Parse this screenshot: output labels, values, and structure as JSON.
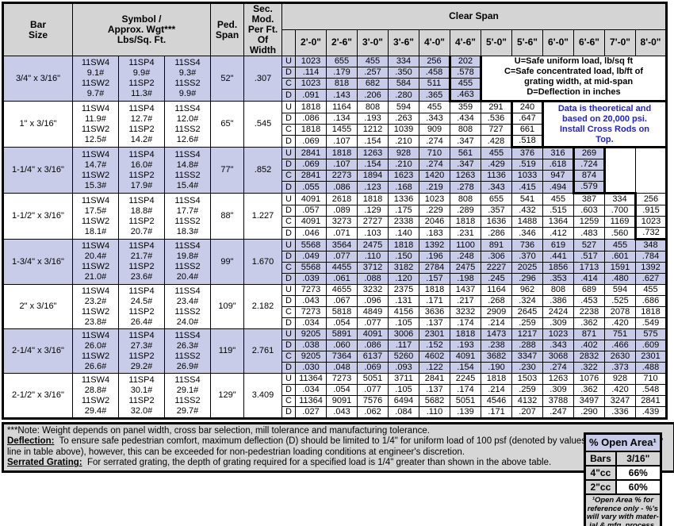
{
  "header": {
    "bar_size": "Bar\nSize",
    "symbol": "Symbol /\nApprox. Wgt***\nLbs/Sq. Ft.",
    "ped_span": "Ped.\nSpan",
    "sec_mod": "Sec. Mod.\nPer Ft.\nOf Width",
    "clear_span": "Clear Span",
    "spans": [
      "2'-0\"",
      "2'-6\"",
      "3'-0\"",
      "3'-6\"",
      "4'-0\"",
      "4'-6\"",
      "5'-0\"",
      "5'-6\"",
      "6'-0\"",
      "6'-6\"",
      "7'-0\"",
      "8'-0\""
    ]
  },
  "sub_labels": [
    "U",
    "D",
    "C",
    "D"
  ],
  "legend_lines": [
    "U=Safe uniform load, lb/sq ft",
    "C=Safe concentrated load, lb/ft of",
    "    grating width, at mid-span",
    "D=Deflection in inches"
  ],
  "info_lines": [
    "Data is theoretical and",
    "based on 20,000 psi.",
    "Install Cross Rods on",
    "Top."
  ],
  "rows": [
    {
      "bar_size": "3/4\" x 3/16\"",
      "symbols": [
        [
          "11SW4",
          "9.1#"
        ],
        [
          "11SP4",
          "9.9#"
        ],
        [
          "11SS4",
          "9.3#"
        ],
        [
          "11SW2",
          "9.7#"
        ],
        [
          "11SP2",
          "11.3#"
        ],
        [
          "11SS2",
          "9.9#"
        ]
      ],
      "ped_span": "52\"",
      "sec_mod": ".307",
      "heavy_col": 6,
      "U": [
        "1023",
        "655",
        "455",
        "334",
        "256",
        "202"
      ],
      "D1": [
        ".114",
        ".179",
        ".257",
        ".350",
        ".458",
        ".578"
      ],
      "C": [
        "1023",
        "818",
        "682",
        "584",
        "511",
        "455"
      ],
      "D2": [
        ".091",
        ".143",
        ".206",
        ".280",
        ".365",
        ".463"
      ]
    },
    {
      "bar_size": "1\" x 3/16\"",
      "symbols": [
        [
          "11SW4",
          "11.9#"
        ],
        [
          "11SP4",
          "12.7#"
        ],
        [
          "11SS4",
          "12.0#"
        ],
        [
          "11SW2",
          "12.5#"
        ],
        [
          "11SP2",
          "14.2#"
        ],
        [
          "11SS2",
          "12.6#"
        ]
      ],
      "ped_span": "65\"",
      "sec_mod": ".545",
      "heavy_col": 8,
      "U": [
        "1818",
        "1164",
        "808",
        "594",
        "455",
        "359",
        "291",
        "240"
      ],
      "D1": [
        ".086",
        ".134",
        ".193",
        ".263",
        ".343",
        ".434",
        ".536",
        ".647"
      ],
      "C": [
        "1818",
        "1455",
        "1212",
        "1039",
        "909",
        "808",
        "727",
        "661"
      ],
      "D2": [
        ".069",
        ".107",
        ".154",
        ".210",
        ".274",
        ".347",
        ".428",
        ".518"
      ]
    },
    {
      "bar_size": "1-1/4\" x 3/16\"",
      "symbols": [
        [
          "11SW4",
          "14.7#"
        ],
        [
          "11SP4",
          "16.0#"
        ],
        [
          "11SS4",
          "14.8#"
        ],
        [
          "11SW2",
          "15.3#"
        ],
        [
          "11SP2",
          "17.9#"
        ],
        [
          "11SS2",
          "15.4#"
        ]
      ],
      "ped_span": "77\"",
      "sec_mod": ".852",
      "heavy_col": 10,
      "U": [
        "2841",
        "1818",
        "1263",
        "928",
        "710",
        "561",
        "455",
        "376",
        "316",
        "269"
      ],
      "D1": [
        ".069",
        ".107",
        ".154",
        ".210",
        ".274",
        ".347",
        ".429",
        ".519",
        ".618",
        ".724"
      ],
      "C": [
        "2841",
        "2273",
        "1894",
        "1623",
        "1420",
        "1263",
        "1136",
        "1033",
        "947",
        "874"
      ],
      "D2": [
        ".055",
        ".086",
        ".123",
        ".168",
        ".219",
        ".278",
        ".343",
        ".415",
        ".494",
        ".579"
      ]
    },
    {
      "bar_size": "1-1/2\" x 3/16\"",
      "symbols": [
        [
          "11SW4",
          "17.5#"
        ],
        [
          "11SP4",
          "18.8#"
        ],
        [
          "11SS4",
          "17.7#"
        ],
        [
          "11SW2",
          "18.1#"
        ],
        [
          "11SP2",
          "20.7#"
        ],
        [
          "11SS2",
          "18.3#"
        ]
      ],
      "ped_span": "88\"",
      "sec_mod": "1.227",
      "heavy_col": 12,
      "U": [
        "4091",
        "2618",
        "1818",
        "1336",
        "1023",
        "808",
        "655",
        "541",
        "455",
        "387",
        "334",
        "256"
      ],
      "D1": [
        ".057",
        ".089",
        ".129",
        ".175",
        ".229",
        ".289",
        ".357",
        ".432",
        ".515",
        ".603",
        ".700",
        ".915"
      ],
      "C": [
        "4091",
        "3273",
        "2727",
        "2338",
        "2046",
        "1818",
        "1636",
        "1488",
        "1364",
        "1259",
        "1169",
        "1023"
      ],
      "D2": [
        ".046",
        ".071",
        ".103",
        ".140",
        ".183",
        ".231",
        ".286",
        ".346",
        ".412",
        ".483",
        ".560",
        ".732"
      ]
    },
    {
      "bar_size": "1-3/4\" x 3/16\"",
      "symbols": [
        [
          "11SW4",
          "20.4#"
        ],
        [
          "11SP4",
          "21.7#"
        ],
        [
          "11SS4",
          "19.8#"
        ],
        [
          "11SW2",
          "21.0#"
        ],
        [
          "11SP2",
          "23.6#"
        ],
        [
          "11SS2",
          "20.4#"
        ]
      ],
      "ped_span": "99\"",
      "sec_mod": "1.670",
      "heavy_col": 0,
      "U": [
        "5568",
        "3564",
        "2475",
        "1818",
        "1392",
        "1100",
        "891",
        "736",
        "619",
        "527",
        "455",
        "348"
      ],
      "D1": [
        ".049",
        ".077",
        ".110",
        ".150",
        ".196",
        ".248",
        ".306",
        ".370",
        ".441",
        ".517",
        ".601",
        ".784"
      ],
      "C": [
        "5568",
        "4455",
        "3712",
        "3182",
        "2784",
        "2475",
        "2227",
        "2025",
        "1856",
        "1713",
        "1591",
        "1392"
      ],
      "D2": [
        ".039",
        ".061",
        ".088",
        ".120",
        ".157",
        ".198",
        ".245",
        ".296",
        ".353",
        ".414",
        ".480",
        ".627"
      ]
    },
    {
      "bar_size": "2\" x 3/16\"",
      "symbols": [
        [
          "11SW4",
          "23.2#"
        ],
        [
          "11SP4",
          "24.5#"
        ],
        [
          "11SS4",
          "23.4#"
        ],
        [
          "11SW2",
          "23.8#"
        ],
        [
          "11SP2",
          "26.4#"
        ],
        [
          "11SS2",
          "24.0#"
        ]
      ],
      "ped_span": "109\"",
      "sec_mod": "2.182",
      "heavy_col": 0,
      "U": [
        "7273",
        "4655",
        "3232",
        "2375",
        "1818",
        "1437",
        "1164",
        "962",
        "808",
        "689",
        "594",
        "455"
      ],
      "D1": [
        ".043",
        ".067",
        ".096",
        ".131",
        ".171",
        ".217",
        ".268",
        ".324",
        ".386",
        ".453",
        ".525",
        ".686"
      ],
      "C": [
        "7273",
        "5818",
        "4849",
        "4156",
        "3636",
        "3232",
        "2909",
        "2645",
        "2424",
        "2238",
        "2078",
        "1818"
      ],
      "D2": [
        ".034",
        ".054",
        ".077",
        ".105",
        ".137",
        ".174",
        ".214",
        ".259",
        ".309",
        ".362",
        ".420",
        ".549"
      ]
    },
    {
      "bar_size": "2-1/4\" x 3/16\"",
      "symbols": [
        [
          "11SW4",
          "26.0#"
        ],
        [
          "11SP4",
          "27.3#"
        ],
        [
          "11SS4",
          "26.3#"
        ],
        [
          "11SW2",
          "26.6#"
        ],
        [
          "11SP2",
          "29.2#"
        ],
        [
          "11SS2",
          "26.9#"
        ]
      ],
      "ped_span": "119\"",
      "sec_mod": "2.761",
      "heavy_col": 0,
      "U": [
        "9205",
        "5891",
        "4091",
        "3006",
        "2301",
        "1818",
        "1473",
        "1217",
        "1023",
        "871",
        "751",
        "575"
      ],
      "D1": [
        ".038",
        ".060",
        ".086",
        ".117",
        ".152",
        ".193",
        ".238",
        ".288",
        ".343",
        ".402",
        ".466",
        ".609"
      ],
      "C": [
        "9205",
        "7364",
        "6137",
        "5260",
        "4602",
        "4091",
        "3682",
        "3347",
        "3068",
        "2832",
        "2630",
        "2301"
      ],
      "D2": [
        ".030",
        ".048",
        ".069",
        ".093",
        ".122",
        ".154",
        ".190",
        ".230",
        ".274",
        ".322",
        ".373",
        ".488"
      ]
    },
    {
      "bar_size": "2-1/2\" x 3/16\"",
      "symbols": [
        [
          "11SW4",
          "28.8#"
        ],
        [
          "11SP4",
          "30.1#"
        ],
        [
          "11SS4",
          "29.1#"
        ],
        [
          "11SW2",
          "29.4#"
        ],
        [
          "11SP2",
          "32.0#"
        ],
        [
          "11SS2",
          "29.7#"
        ]
      ],
      "ped_span": "129\"",
      "sec_mod": "3.409",
      "heavy_col": 0,
      "U": [
        "11364",
        "7273",
        "5051",
        "3711",
        "2841",
        "2245",
        "1818",
        "1503",
        "1263",
        "1076",
        "928",
        "710"
      ],
      "D1": [
        ".034",
        ".054",
        ".077",
        ".105",
        ".137",
        ".174",
        ".214",
        ".259",
        ".309",
        ".362",
        ".420",
        ".548"
      ],
      "C": [
        "11364",
        "9091",
        "7576",
        "6494",
        "5682",
        "5051",
        "4546",
        "4132",
        "3788",
        "3497",
        "3247",
        "2841"
      ],
      "D2": [
        ".027",
        ".043",
        ".062",
        ".084",
        ".110",
        ".139",
        ".171",
        ".207",
        ".247",
        ".290",
        ".336",
        ".439"
      ]
    }
  ],
  "notes": {
    "note1": "***Note: Weight depends on panel width, cross bar selection, mill tolerance and manufacturing tolerance.",
    "deflection_label": "Deflection:",
    "deflection_text": "  To ensure safe pedestrian comfort, maximum deflection (D) should be limited to 1/4\" for uniform load of 100 psf (denoted by values to the left of heavy line in table above), however, this can be exceeded for non-pedestrian loading conditions at engineer's discretion.",
    "serrated_label": "Serrated Grating:",
    "serrated_text": "  For serrated grating, the depth of grating required for a specified load is 1/4\" greater than shown in the above table."
  },
  "open_area": {
    "title": "% Open Area¹",
    "header": [
      "Bars",
      "3/16\""
    ],
    "rows": [
      {
        "label": "4\"cc",
        "value": "66%"
      },
      {
        "label": "2\"cc",
        "value": "60%"
      }
    ],
    "footnote": "¹Open Area % for\nreference only - %'s\nwill vary with mater-\nial & mfg. process."
  },
  "colors": {
    "lavender": "#c9cce9",
    "header_gray": "#d4d4d4",
    "info_blue": "#2222cc",
    "border": "#000000"
  }
}
